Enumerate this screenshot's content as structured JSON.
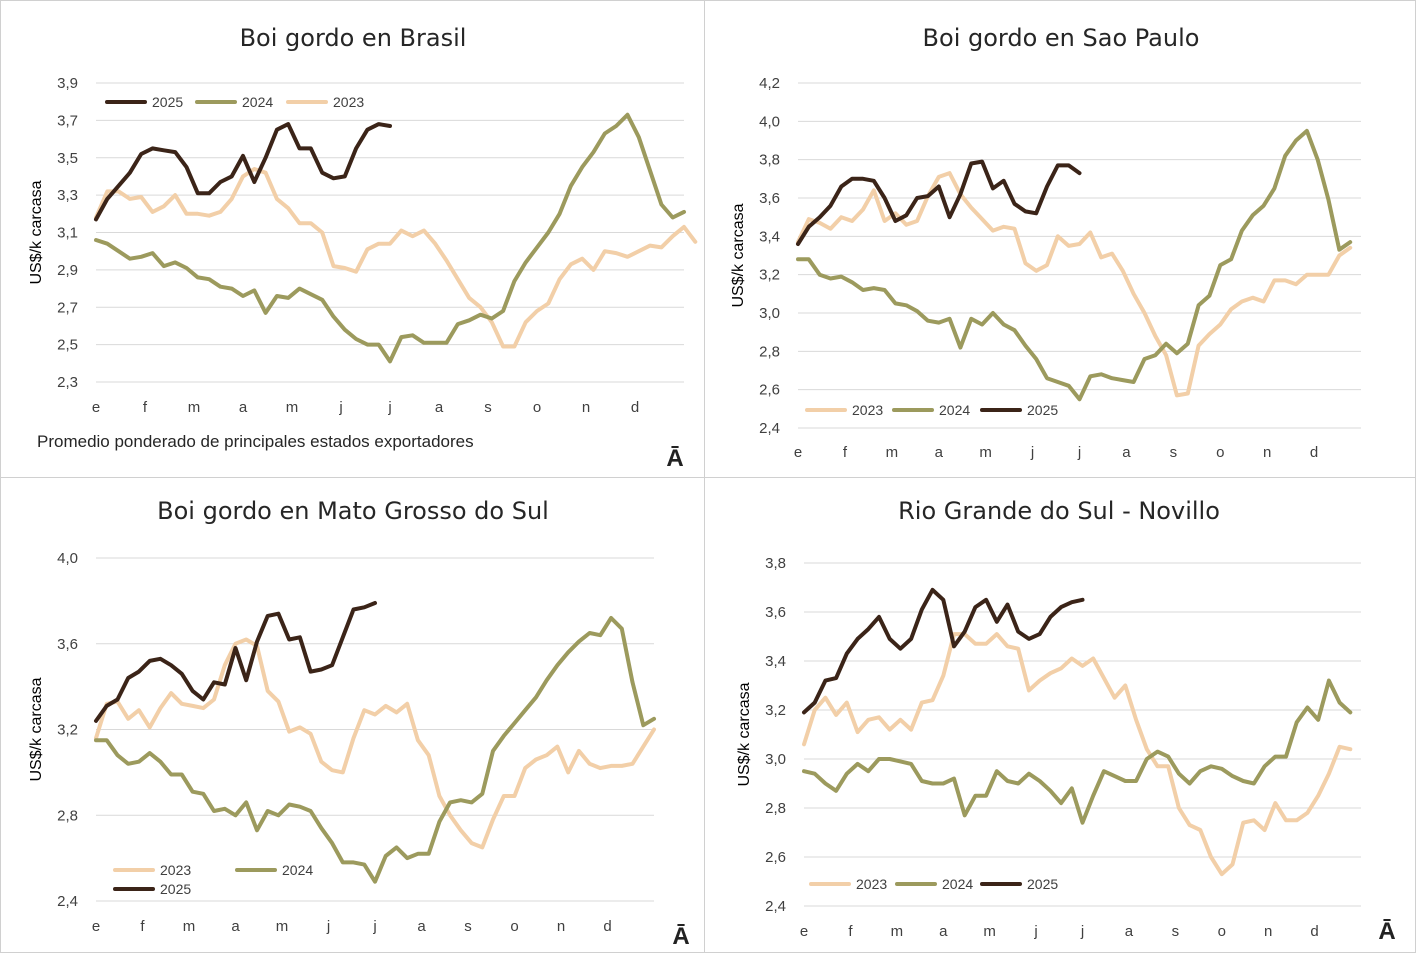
{
  "colors": {
    "2023": "#f2cfa8",
    "2024": "#9c9a5d",
    "2025": "#3b2418",
    "grid": "#d9d9d9",
    "text": "#404040"
  },
  "months": [
    "e",
    "f",
    "m",
    "a",
    "m",
    "j",
    "j",
    "a",
    "s",
    "o",
    "n",
    "d"
  ],
  "logo_glyph": "Ā",
  "chart_data": [
    {
      "id": "brasil",
      "type": "line",
      "title": "Boi gordo en Brasil",
      "ylabel": "US$/k carcasa",
      "ylim": [
        2.3,
        3.9
      ],
      "yticks": [
        "2,3",
        "2,5",
        "2,7",
        "2,9",
        "3,1",
        "3,3",
        "3,5",
        "3,7",
        "3,9"
      ],
      "note": "Promedio ponderado de principales estados exportadores",
      "legend_order": [
        "2025",
        "2024",
        "2023"
      ],
      "series": [
        {
          "name": "2023",
          "values": [
            3.18,
            3.32,
            3.32,
            3.28,
            3.29,
            3.21,
            3.24,
            3.3,
            3.2,
            3.2,
            3.19,
            3.21,
            3.28,
            3.4,
            3.44,
            3.42,
            3.28,
            3.23,
            3.15,
            3.15,
            3.1,
            2.92,
            2.91,
            2.89,
            3.01,
            3.04,
            3.04,
            3.11,
            3.08,
            3.11,
            3.04,
            2.95,
            2.85,
            2.75,
            2.7,
            2.62,
            2.49,
            2.49,
            2.62,
            2.68,
            2.72,
            2.85,
            2.93,
            2.96,
            2.9,
            3.0,
            2.99,
            2.97,
            3.0,
            3.03,
            3.02,
            3.08,
            3.13,
            3.05
          ]
        },
        {
          "name": "2024",
          "values": [
            3.06,
            3.04,
            3.0,
            2.96,
            2.97,
            2.99,
            2.92,
            2.94,
            2.91,
            2.86,
            2.85,
            2.81,
            2.8,
            2.76,
            2.79,
            2.67,
            2.76,
            2.75,
            2.8,
            2.77,
            2.74,
            2.65,
            2.58,
            2.53,
            2.5,
            2.5,
            2.41,
            2.54,
            2.55,
            2.51,
            2.51,
            2.51,
            2.61,
            2.63,
            2.66,
            2.64,
            2.68,
            2.84,
            2.94,
            3.02,
            3.1,
            3.2,
            3.35,
            3.45,
            3.53,
            3.63,
            3.67,
            3.73,
            3.61,
            3.43,
            3.25,
            3.18,
            3.21
          ]
        },
        {
          "name": "2025",
          "values": [
            3.17,
            3.28,
            3.35,
            3.42,
            3.52,
            3.55,
            3.54,
            3.53,
            3.45,
            3.31,
            3.31,
            3.37,
            3.4,
            3.51,
            3.37,
            3.5,
            3.65,
            3.68,
            3.55,
            3.55,
            3.42,
            3.39,
            3.4,
            3.55,
            3.65,
            3.68,
            3.67
          ]
        }
      ]
    },
    {
      "id": "sao-paulo",
      "type": "line",
      "title": "Boi gordo en Sao Paulo",
      "ylabel": "US$/k carcasa",
      "ylim": [
        2.4,
        4.2
      ],
      "yticks": [
        "2,4",
        "2,6",
        "2,8",
        "3,0",
        "3,2",
        "3,4",
        "3,6",
        "3,8",
        "4,0",
        "4,2"
      ],
      "legend_order": [
        "2023",
        "2024",
        "2025"
      ],
      "series": [
        {
          "name": "2023",
          "values": [
            3.37,
            3.49,
            3.47,
            3.44,
            3.5,
            3.48,
            3.54,
            3.64,
            3.48,
            3.52,
            3.46,
            3.48,
            3.61,
            3.71,
            3.73,
            3.62,
            3.55,
            3.49,
            3.43,
            3.45,
            3.44,
            3.26,
            3.22,
            3.25,
            3.4,
            3.35,
            3.36,
            3.42,
            3.29,
            3.31,
            3.22,
            3.1,
            3.0,
            2.88,
            2.78,
            2.57,
            2.58,
            2.83,
            2.89,
            2.94,
            3.02,
            3.06,
            3.08,
            3.06,
            3.17,
            3.17,
            3.15,
            3.2,
            3.2,
            3.2,
            3.3,
            3.34
          ]
        },
        {
          "name": "2024",
          "values": [
            3.28,
            3.28,
            3.2,
            3.18,
            3.19,
            3.16,
            3.12,
            3.13,
            3.12,
            3.05,
            3.04,
            3.01,
            2.96,
            2.95,
            2.97,
            2.82,
            2.97,
            2.94,
            3.0,
            2.94,
            2.91,
            2.83,
            2.76,
            2.66,
            2.64,
            2.62,
            2.55,
            2.67,
            2.68,
            2.66,
            2.65,
            2.64,
            2.76,
            2.78,
            2.84,
            2.79,
            2.84,
            3.04,
            3.09,
            3.25,
            3.28,
            3.43,
            3.51,
            3.56,
            3.65,
            3.82,
            3.9,
            3.95,
            3.8,
            3.59,
            3.33,
            3.37
          ]
        },
        {
          "name": "2025",
          "values": [
            3.36,
            3.45,
            3.5,
            3.56,
            3.66,
            3.7,
            3.7,
            3.69,
            3.6,
            3.48,
            3.51,
            3.6,
            3.61,
            3.66,
            3.5,
            3.62,
            3.78,
            3.79,
            3.65,
            3.69,
            3.57,
            3.53,
            3.52,
            3.66,
            3.77,
            3.77,
            3.73
          ]
        }
      ]
    },
    {
      "id": "mato-grosso",
      "type": "line",
      "title": "Boi gordo en Mato Grosso do Sul",
      "ylabel": "US$/k carcasa",
      "ylim": [
        2.4,
        4.0
      ],
      "yticks": [
        "2,4",
        "2,8",
        "3,2",
        "3,6",
        "4,0"
      ],
      "legend_order": [
        "2023",
        "2024",
        "2025"
      ],
      "series": [
        {
          "name": "2023",
          "values": [
            3.16,
            3.32,
            3.33,
            3.25,
            3.29,
            3.21,
            3.3,
            3.37,
            3.32,
            3.31,
            3.3,
            3.34,
            3.5,
            3.6,
            3.62,
            3.59,
            3.38,
            3.33,
            3.19,
            3.21,
            3.18,
            3.05,
            3.01,
            3.0,
            3.16,
            3.29,
            3.27,
            3.31,
            3.28,
            3.32,
            3.15,
            3.08,
            2.89,
            2.8,
            2.73,
            2.67,
            2.65,
            2.78,
            2.89,
            2.89,
            3.02,
            3.06,
            3.08,
            3.12,
            3.0,
            3.1,
            3.04,
            3.02,
            3.03,
            3.03,
            3.04,
            3.12,
            3.2
          ]
        },
        {
          "name": "2024",
          "values": [
            3.15,
            3.15,
            3.08,
            3.04,
            3.05,
            3.09,
            3.05,
            2.99,
            2.99,
            2.91,
            2.9,
            2.82,
            2.83,
            2.8,
            2.86,
            2.73,
            2.82,
            2.8,
            2.85,
            2.84,
            2.82,
            2.74,
            2.67,
            2.58,
            2.58,
            2.57,
            2.49,
            2.61,
            2.65,
            2.6,
            2.62,
            2.62,
            2.77,
            2.86,
            2.87,
            2.86,
            2.9,
            3.1,
            3.17,
            3.23,
            3.29,
            3.35,
            3.43,
            3.5,
            3.56,
            3.61,
            3.65,
            3.64,
            3.72,
            3.67,
            3.42,
            3.22,
            3.25
          ]
        },
        {
          "name": "2025",
          "values": [
            3.24,
            3.31,
            3.34,
            3.44,
            3.47,
            3.52,
            3.53,
            3.5,
            3.46,
            3.38,
            3.34,
            3.42,
            3.41,
            3.58,
            3.43,
            3.61,
            3.73,
            3.74,
            3.62,
            3.63,
            3.47,
            3.48,
            3.5,
            3.63,
            3.76,
            3.77,
            3.79
          ]
        }
      ]
    },
    {
      "id": "rio-grande",
      "type": "line",
      "title": "Rio Grande do Sul - Novillo",
      "ylabel": "US$/k carcasa",
      "ylim": [
        2.4,
        3.8
      ],
      "yticks": [
        "2,4",
        "2,6",
        "2,8",
        "3,0",
        "3,2",
        "3,4",
        "3,6",
        "3,8"
      ],
      "legend_order": [
        "2023",
        "2024",
        "2025"
      ],
      "series": [
        {
          "name": "2023",
          "values": [
            3.06,
            3.2,
            3.25,
            3.18,
            3.23,
            3.11,
            3.16,
            3.17,
            3.12,
            3.16,
            3.12,
            3.23,
            3.24,
            3.34,
            3.51,
            3.51,
            3.47,
            3.47,
            3.51,
            3.46,
            3.45,
            3.28,
            3.32,
            3.35,
            3.37,
            3.41,
            3.38,
            3.41,
            3.33,
            3.25,
            3.3,
            3.16,
            3.04,
            2.97,
            2.97,
            2.8,
            2.73,
            2.71,
            2.6,
            2.53,
            2.57,
            2.74,
            2.75,
            2.71,
            2.82,
            2.75,
            2.75,
            2.78,
            2.85,
            2.94,
            3.05,
            3.04
          ]
        },
        {
          "name": "2024",
          "values": [
            2.95,
            2.94,
            2.9,
            2.87,
            2.94,
            2.98,
            2.95,
            3.0,
            3.0,
            2.99,
            2.98,
            2.91,
            2.9,
            2.9,
            2.92,
            2.77,
            2.85,
            2.85,
            2.95,
            2.91,
            2.9,
            2.94,
            2.91,
            2.87,
            2.82,
            2.88,
            2.74,
            2.85,
            2.95,
            2.93,
            2.91,
            2.91,
            3.0,
            3.03,
            3.01,
            2.94,
            2.9,
            2.95,
            2.97,
            2.96,
            2.93,
            2.91,
            2.9,
            2.97,
            3.01,
            3.01,
            3.15,
            3.21,
            3.16,
            3.32,
            3.23,
            3.19
          ]
        },
        {
          "name": "2025",
          "values": [
            3.19,
            3.23,
            3.32,
            3.33,
            3.43,
            3.49,
            3.53,
            3.58,
            3.49,
            3.45,
            3.49,
            3.61,
            3.69,
            3.65,
            3.46,
            3.52,
            3.62,
            3.65,
            3.56,
            3.63,
            3.52,
            3.49,
            3.51,
            3.58,
            3.62,
            3.64,
            3.65
          ]
        }
      ]
    }
  ]
}
